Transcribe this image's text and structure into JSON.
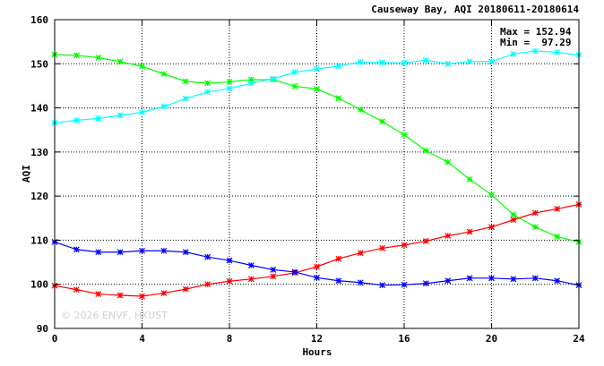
{
  "chart_data": {
    "type": "line",
    "title": "Causeway Bay, AQI 20180611-20180614",
    "xlabel": "Hours",
    "ylabel": "AQI",
    "xlim": [
      0,
      24
    ],
    "ylim": [
      90,
      160
    ],
    "x_ticks": [
      0,
      4,
      8,
      12,
      16,
      20,
      24
    ],
    "y_ticks": [
      90,
      100,
      110,
      120,
      130,
      140,
      150,
      160
    ],
    "grid": true,
    "legend": "none",
    "annotations": [
      "Max = 152.94",
      "Min =  97.29"
    ],
    "watermark": "© 2026 ENVF, HKUST",
    "x": [
      0,
      1,
      2,
      3,
      4,
      5,
      6,
      7,
      8,
      9,
      10,
      11,
      12,
      13,
      14,
      15,
      16,
      17,
      18,
      19,
      20,
      21,
      22,
      23,
      24
    ],
    "series": [
      {
        "color": "#00ff00",
        "values": [
          152.1,
          151.9,
          151.4,
          150.5,
          149.4,
          147.7,
          146.0,
          145.6,
          145.9,
          146.4,
          146.4,
          144.9,
          144.3,
          142.2,
          139.6,
          136.9,
          133.9,
          130.3,
          127.7,
          123.8,
          120.3,
          115.8,
          113.0,
          110.8,
          109.6
        ]
      },
      {
        "color": "#00ffff",
        "values": [
          136.6,
          137.2,
          137.6,
          138.3,
          139.0,
          140.3,
          142.1,
          143.6,
          144.4,
          145.6,
          146.6,
          148.1,
          148.8,
          149.5,
          150.4,
          150.3,
          150.2,
          150.8,
          150.0,
          150.5,
          150.5,
          152.2,
          152.9,
          152.6,
          152.0
        ]
      },
      {
        "color": "#ff0000",
        "values": [
          99.7,
          98.8,
          97.8,
          97.5,
          97.3,
          98.0,
          98.9,
          100.0,
          100.7,
          101.2,
          101.8,
          102.6,
          104.0,
          105.8,
          107.1,
          108.2,
          108.9,
          109.8,
          111.0,
          111.9,
          113.0,
          114.6,
          116.2,
          117.1,
          118.1
        ]
      },
      {
        "color": "#0000ff",
        "values": [
          109.6,
          107.9,
          107.3,
          107.3,
          107.6,
          107.6,
          107.3,
          106.2,
          105.4,
          104.3,
          103.3,
          102.8,
          101.5,
          100.8,
          100.4,
          99.8,
          99.9,
          100.2,
          100.8,
          101.4,
          101.4,
          101.2,
          101.4,
          100.8,
          99.8
        ]
      }
    ]
  }
}
